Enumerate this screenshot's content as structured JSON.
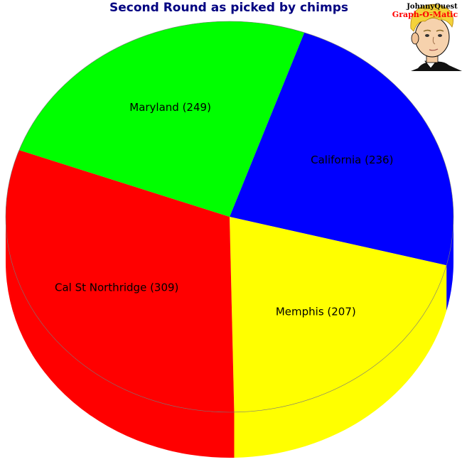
{
  "chart_data": {
    "type": "pie",
    "style": "3d-tilted",
    "title": "Second Round as picked by chimps",
    "categories": [
      "California",
      "Memphis",
      "Cal St Northridge",
      "Maryland"
    ],
    "values": [
      236,
      207,
      309,
      249
    ],
    "labels": [
      "California (236)",
      "Memphis (207)",
      "Cal St Northridge (309)",
      "Maryland (249)"
    ],
    "colors": [
      "#0000ff",
      "#ffff00",
      "#ff0000",
      "#00ff00"
    ],
    "title_color": "#000080"
  },
  "logo": {
    "line1": "JohnnyQuest",
    "line2": "Graph-O-Matic",
    "line2_color": "#ff0000",
    "icon": "cartoon-boy-face-icon"
  }
}
